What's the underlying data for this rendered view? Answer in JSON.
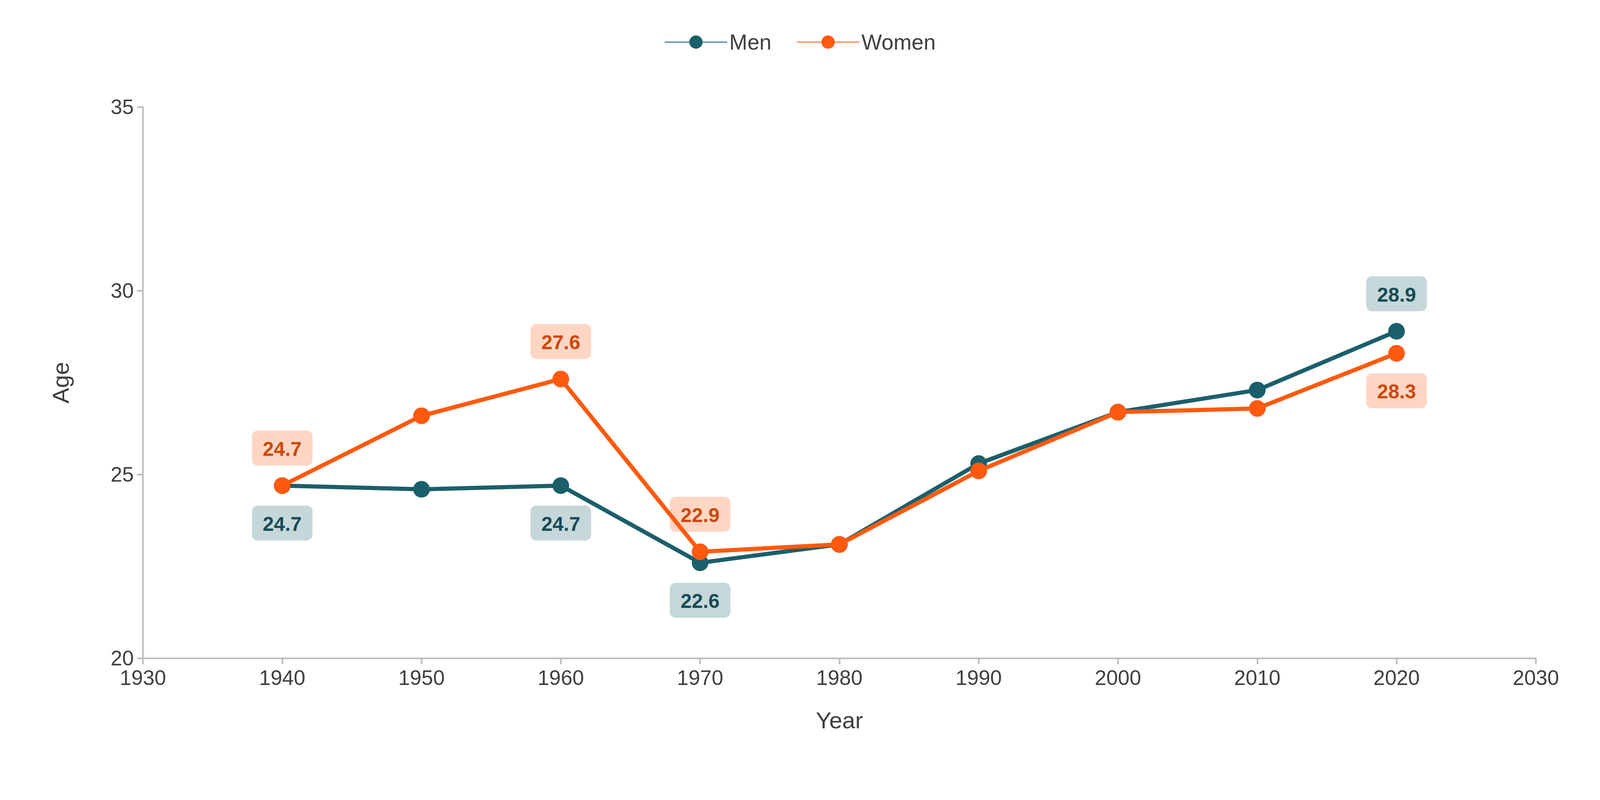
{
  "chart_data": {
    "type": "line",
    "x_label": "Year",
    "y_label": "Age",
    "x": [
      1940,
      1950,
      1960,
      1970,
      1980,
      1990,
      2000,
      2010,
      2020
    ],
    "series": [
      {
        "name": "Men",
        "color": "#1b5f6b",
        "marker": "circle",
        "values": [
          24.7,
          24.6,
          24.7,
          22.6,
          23.1,
          25.3,
          26.7,
          27.3,
          28.9
        ],
        "value_labels": [
          "24.7",
          null,
          "24.7",
          "22.6",
          null,
          null,
          null,
          null,
          "28.9"
        ]
      },
      {
        "name": "Women",
        "color": "#ff5a0f",
        "marker": "circle",
        "values": [
          24.7,
          26.6,
          27.6,
          22.9,
          23.1,
          25.1,
          26.7,
          26.8,
          28.3
        ],
        "value_labels": [
          "24.7",
          null,
          "27.6",
          "22.9",
          null,
          null,
          null,
          null,
          "28.3"
        ]
      }
    ],
    "xlim": [
      1930,
      2030
    ],
    "xticks": [
      1930,
      1940,
      1950,
      1960,
      1970,
      1980,
      1990,
      2000,
      2010,
      2020,
      2030
    ],
    "ylim": [
      20,
      35
    ],
    "yticks": [
      20,
      25,
      30,
      35
    ],
    "grid": false,
    "legend": "top",
    "data_labels": true
  }
}
